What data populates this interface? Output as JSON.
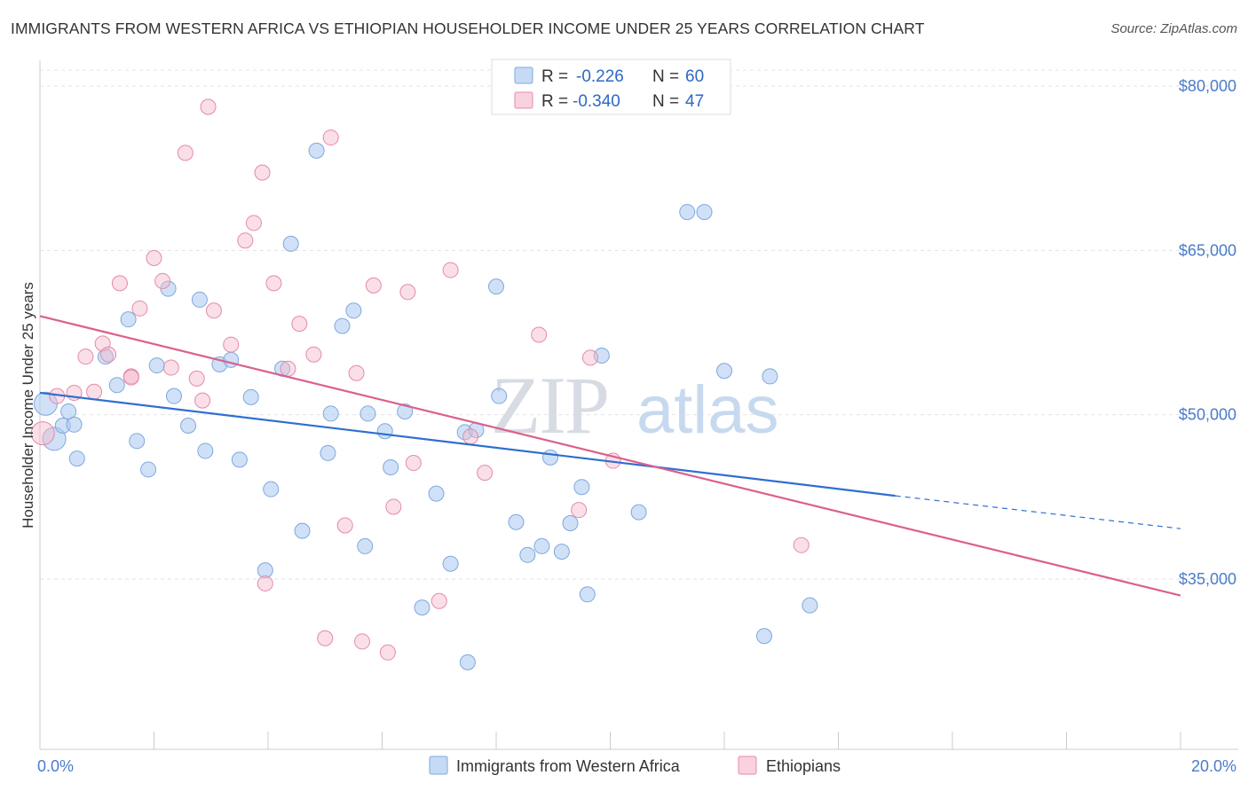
{
  "title": "IMMIGRANTS FROM WESTERN AFRICA VS ETHIOPIAN HOUSEHOLDER INCOME UNDER 25 YEARS CORRELATION CHART",
  "source": "Source: ZipAtlas.com",
  "watermark": {
    "zip": "ZIP",
    "atlas": "atlas"
  },
  "legend": {
    "rows": [
      {
        "r_label": "R =",
        "r_value": "-0.226",
        "n_label": "N =",
        "n_value": "60",
        "color": "#a9c8f0"
      },
      {
        "r_label": "R =",
        "r_value": "-0.340",
        "n_label": "N =",
        "n_value": "47",
        "color": "#f5b8cc"
      }
    ]
  },
  "bottom_legend": [
    "Immigrants from Western Africa",
    "Ethiopians"
  ],
  "chart_data": {
    "type": "scatter",
    "title": "IMMIGRANTS FROM WESTERN AFRICA VS ETHIOPIAN HOUSEHOLDER INCOME UNDER 25 YEARS CORRELATION CHART",
    "xlabel": "",
    "ylabel": "Householder Income Under 25 years",
    "xlim": [
      0,
      20
    ],
    "ylim": [
      20000,
      83000
    ],
    "x_tick_labels": [
      "0.0%",
      "20.0%"
    ],
    "y_ticks": [
      35000,
      50000,
      65000,
      80000
    ],
    "y_tick_labels": [
      "$35,000",
      "$50,000",
      "$65,000",
      "$80,000"
    ],
    "grid": true,
    "legend_position": "top-center",
    "series": [
      {
        "name": "Immigrants from Western Africa",
        "color": "#a9c8f0",
        "stroke": "#7ea8de",
        "line_color": "#2f6fcf",
        "trend": {
          "x": [
            0,
            15.0
          ],
          "y": [
            52000,
            42600
          ]
        },
        "trend_dashed": {
          "x": [
            15.0,
            20.0
          ],
          "y": [
            42600,
            39600
          ]
        },
        "points": [
          [
            0.1,
            51000
          ],
          [
            0.25,
            47800
          ],
          [
            0.4,
            49000
          ],
          [
            0.5,
            50300
          ],
          [
            0.65,
            46000
          ],
          [
            1.15,
            55300
          ],
          [
            1.35,
            52700
          ],
          [
            1.55,
            58700
          ],
          [
            1.7,
            47600
          ],
          [
            1.9,
            45000
          ],
          [
            2.05,
            54500
          ],
          [
            2.25,
            61500
          ],
          [
            2.35,
            51700
          ],
          [
            2.6,
            49000
          ],
          [
            2.8,
            60500
          ],
          [
            2.9,
            46700
          ],
          [
            3.15,
            54600
          ],
          [
            3.35,
            55000
          ],
          [
            3.5,
            45900
          ],
          [
            3.7,
            51600
          ],
          [
            3.95,
            35800
          ],
          [
            4.05,
            43200
          ],
          [
            4.25,
            54200
          ],
          [
            4.4,
            65600
          ],
          [
            4.6,
            39400
          ],
          [
            4.85,
            74100
          ],
          [
            5.05,
            46500
          ],
          [
            5.1,
            50100
          ],
          [
            5.3,
            58100
          ],
          [
            5.5,
            59500
          ],
          [
            5.7,
            38000
          ],
          [
            5.75,
            50100
          ],
          [
            6.05,
            48500
          ],
          [
            6.15,
            45200
          ],
          [
            6.4,
            50300
          ],
          [
            6.7,
            32400
          ],
          [
            6.95,
            42800
          ],
          [
            7.2,
            36400
          ],
          [
            7.45,
            48400
          ],
          [
            7.5,
            27400
          ],
          [
            7.65,
            48600
          ],
          [
            8.0,
            61700
          ],
          [
            8.05,
            51700
          ],
          [
            8.35,
            40200
          ],
          [
            8.55,
            37200
          ],
          [
            8.8,
            38000
          ],
          [
            8.95,
            46100
          ],
          [
            9.15,
            37500
          ],
          [
            9.3,
            40100
          ],
          [
            9.5,
            43400
          ],
          [
            9.6,
            33600
          ],
          [
            9.85,
            55400
          ],
          [
            10.5,
            41100
          ],
          [
            11.35,
            68500
          ],
          [
            11.65,
            68500
          ],
          [
            12.0,
            54000
          ],
          [
            12.7,
            29800
          ],
          [
            12.8,
            53500
          ],
          [
            13.5,
            32600
          ],
          [
            0.6,
            49100
          ]
        ]
      },
      {
        "name": "Ethiopians",
        "color": "#f5b8cc",
        "stroke": "#e58aa8",
        "line_color": "#dc5f8c",
        "trend": {
          "x": [
            0,
            20.0
          ],
          "y": [
            59000,
            33500
          ]
        },
        "points": [
          [
            0.05,
            48300
          ],
          [
            0.3,
            51700
          ],
          [
            0.6,
            52000
          ],
          [
            0.8,
            55300
          ],
          [
            0.95,
            52100
          ],
          [
            1.1,
            56500
          ],
          [
            1.2,
            55500
          ],
          [
            1.4,
            62000
          ],
          [
            1.6,
            53500
          ],
          [
            1.75,
            59700
          ],
          [
            2.0,
            64300
          ],
          [
            2.15,
            62200
          ],
          [
            2.3,
            54300
          ],
          [
            2.55,
            73900
          ],
          [
            2.75,
            53300
          ],
          [
            2.85,
            51300
          ],
          [
            2.95,
            78100
          ],
          [
            3.05,
            59500
          ],
          [
            3.35,
            56400
          ],
          [
            3.6,
            65900
          ],
          [
            3.75,
            67500
          ],
          [
            3.9,
            72100
          ],
          [
            3.95,
            34600
          ],
          [
            4.1,
            62000
          ],
          [
            4.35,
            54200
          ],
          [
            4.55,
            58300
          ],
          [
            4.8,
            55500
          ],
          [
            5.0,
            29600
          ],
          [
            5.1,
            75300
          ],
          [
            5.35,
            39900
          ],
          [
            5.55,
            53800
          ],
          [
            5.65,
            29300
          ],
          [
            5.85,
            61800
          ],
          [
            6.1,
            28300
          ],
          [
            6.2,
            41600
          ],
          [
            6.45,
            61200
          ],
          [
            6.55,
            45600
          ],
          [
            7.0,
            33000
          ],
          [
            7.2,
            63200
          ],
          [
            7.55,
            48000
          ],
          [
            7.8,
            44700
          ],
          [
            8.75,
            57300
          ],
          [
            9.45,
            41300
          ],
          [
            9.65,
            55200
          ],
          [
            10.05,
            45800
          ],
          [
            13.35,
            38100
          ],
          [
            1.6,
            53400
          ]
        ]
      }
    ]
  }
}
